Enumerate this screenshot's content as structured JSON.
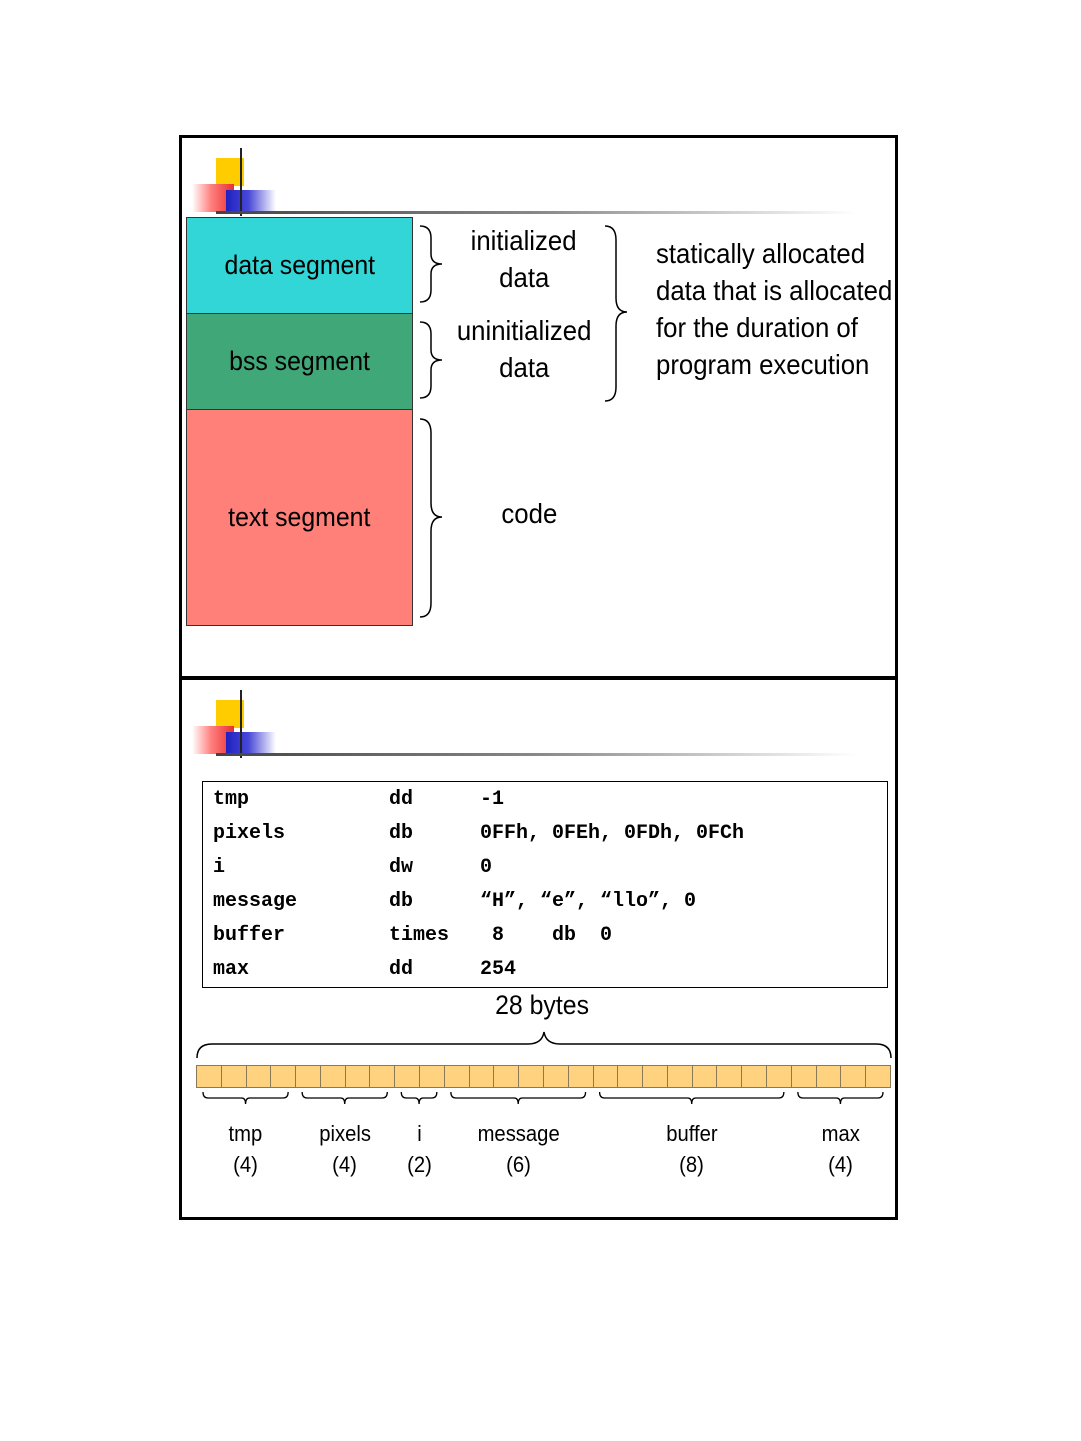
{
  "top_slide": {
    "segments": [
      {
        "label": "data segment",
        "color": "#33d6d6"
      },
      {
        "label": "bss segment",
        "color": "#40a878"
      },
      {
        "label": "text segment",
        "color": "#ff8078"
      }
    ],
    "brace_labels": {
      "initialized": [
        "initialized",
        "data"
      ],
      "uninitialized": [
        "uninitialized",
        "data"
      ],
      "code": "code",
      "static": [
        "statically allocated",
        "data that is allocated",
        "for the duration of",
        "program execution"
      ]
    }
  },
  "bottom_slide": {
    "code_lines": [
      {
        "name": "tmp",
        "directive": "dd",
        "operands": "-1"
      },
      {
        "name": "pixels",
        "directive": "db",
        "operands": "0FFh, 0FEh, 0FDh, 0FCh"
      },
      {
        "name": "i",
        "directive": "dw",
        "operands": "0"
      },
      {
        "name": "message",
        "directive": "db",
        "operands": "“H”, “e”, “llo”, 0"
      },
      {
        "name": "buffer",
        "directive": "times",
        "operands": " 8    db  0"
      },
      {
        "name": "max",
        "directive": "dd",
        "operands": "254"
      }
    ],
    "total_label": "28 bytes",
    "byte_count": 28,
    "byte_color": "#ffd27f",
    "variables": [
      {
        "name": "tmp",
        "size": 4,
        "size_label": "(4)"
      },
      {
        "name": "pixels",
        "size": 4,
        "size_label": "(4)"
      },
      {
        "name": "i",
        "size": 2,
        "size_label": "(2)"
      },
      {
        "name": "message",
        "size": 6,
        "size_label": "(6)"
      },
      {
        "name": "buffer",
        "size": 8,
        "size_label": "(8)"
      },
      {
        "name": "max",
        "size": 4,
        "size_label": "(4)"
      }
    ]
  }
}
